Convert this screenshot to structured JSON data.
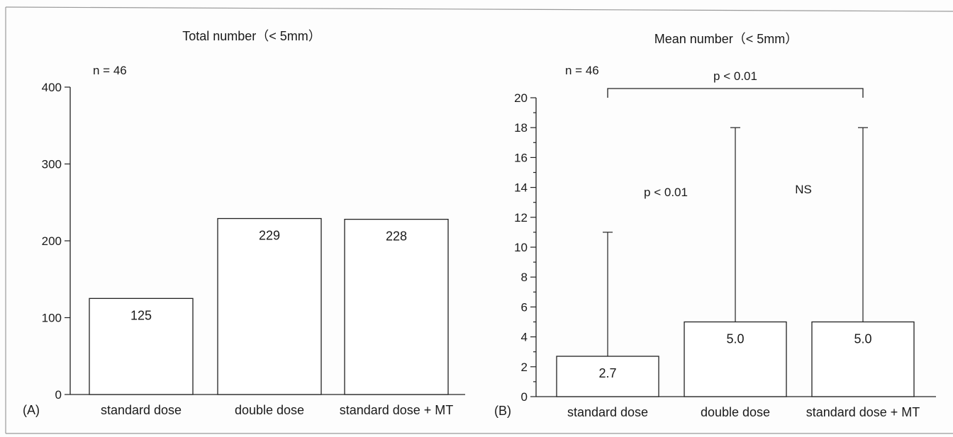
{
  "chart_data": [
    {
      "type": "bar",
      "panel_label": "(A)",
      "title": "Total number（< 5mm）",
      "n_label": "n = 46",
      "categories": [
        "standard dose",
        "double dose",
        "standard dose + MT"
      ],
      "values": [
        125,
        229,
        228
      ],
      "value_labels": [
        "125",
        "229",
        "228"
      ],
      "ylim": [
        0,
        400
      ],
      "yticks": [
        "0",
        "100",
        "200",
        "300",
        "400"
      ],
      "xlabel": "",
      "ylabel": "",
      "grid": false
    },
    {
      "type": "bar",
      "panel_label": "(B)",
      "title": "Mean number（< 5mm）",
      "n_label": "n = 46",
      "categories": [
        "standard dose",
        "double dose",
        "standard dose + MT"
      ],
      "values": [
        2.7,
        5.0,
        5.0
      ],
      "value_labels": [
        "2.7",
        "5.0",
        "5.0"
      ],
      "error_upper": [
        11,
        18,
        18
      ],
      "ylim": [
        0,
        20
      ],
      "yticks": [
        "0",
        "2",
        "4",
        "6",
        "8",
        "10",
        "12",
        "14",
        "16",
        "18",
        "20"
      ],
      "xlabel": "",
      "ylabel": "",
      "grid": false,
      "annotations": {
        "bracket_label": "p < 0.01",
        "pair1_label": "p < 0.01",
        "pair2_label": "NS"
      }
    }
  ]
}
